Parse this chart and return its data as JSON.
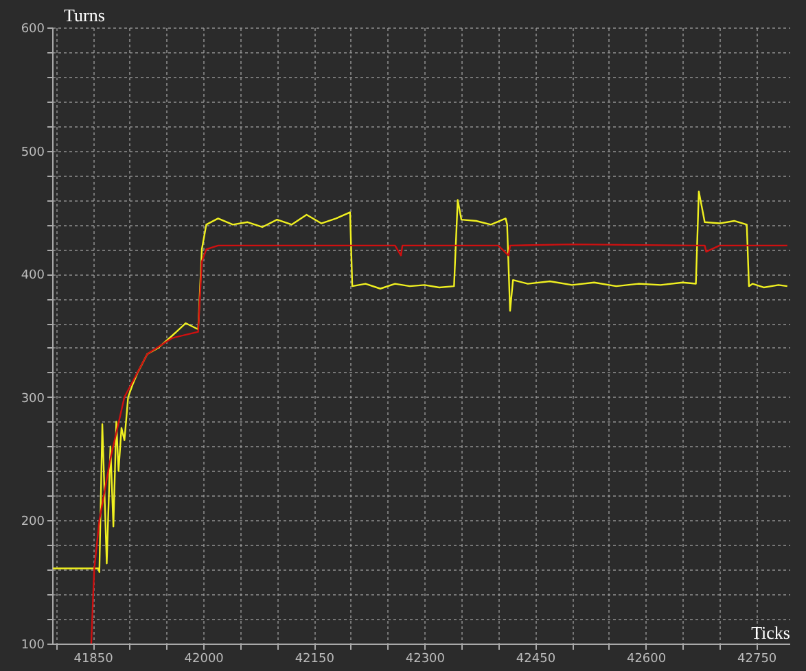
{
  "chart_data": {
    "type": "line",
    "xlabel": "Ticks",
    "ylabel": "Turns",
    "xlim": [
      41795,
      42795
    ],
    "ylim": [
      100,
      600
    ],
    "xticks": [
      {
        "value": 41800,
        "label": null
      },
      41850,
      {
        "value": 41900,
        "label": null
      },
      {
        "value": 41950,
        "label": null
      },
      42000,
      {
        "value": 42050,
        "label": null
      },
      {
        "value": 42100,
        "label": null
      },
      42150,
      {
        "value": 42200,
        "label": null
      },
      {
        "value": 42250,
        "label": null
      },
      42300,
      {
        "value": 42350,
        "label": null
      },
      {
        "value": 42400,
        "label": null
      },
      42450,
      {
        "value": 42500,
        "label": null
      },
      {
        "value": 42550,
        "label": null
      },
      42600,
      {
        "value": 42650,
        "label": null
      },
      {
        "value": 42700,
        "label": null
      },
      42750
    ],
    "yticks": [
      100,
      {
        "value": 120,
        "label": null
      },
      {
        "value": 140,
        "label": null
      },
      {
        "value": 160,
        "label": null
      },
      {
        "value": 180,
        "label": null
      },
      200,
      {
        "value": 220,
        "label": null
      },
      {
        "value": 240,
        "label": null
      },
      {
        "value": 260,
        "label": null
      },
      {
        "value": 280,
        "label": null
      },
      300,
      {
        "value": 320,
        "label": null
      },
      {
        "value": 340,
        "label": null
      },
      {
        "value": 360,
        "label": null
      },
      {
        "value": 380,
        "label": null
      },
      400,
      {
        "value": 420,
        "label": null
      },
      {
        "value": 440,
        "label": null
      },
      {
        "value": 460,
        "label": null
      },
      {
        "value": 480,
        "label": null
      },
      500,
      {
        "value": 520,
        "label": null
      },
      {
        "value": 540,
        "label": null
      },
      {
        "value": 560,
        "label": null
      },
      {
        "value": 580,
        "label": null
      },
      600
    ],
    "grid": true,
    "legend": false,
    "marker": "none",
    "line_style": "solid",
    "series": [
      {
        "color": "#f0f020",
        "x": [
          41796,
          41858,
          41859,
          41863,
          41869,
          41874,
          41878,
          41882,
          41885,
          41889,
          41893,
          41898,
          41904,
          41911,
          41924,
          41939,
          41958,
          41976,
          41993,
          41998,
          42004,
          42020,
          42040,
          42060,
          42080,
          42100,
          42120,
          42140,
          42160,
          42180,
          42199,
          42202,
          42220,
          42240,
          42260,
          42280,
          42300,
          42320,
          42340,
          42345,
          42350,
          42370,
          42390,
          42410,
          42412,
          42416,
          42420,
          42440,
          42470,
          42500,
          42530,
          42560,
          42590,
          42620,
          42650,
          42668,
          42672,
          42680,
          42700,
          42720,
          42737,
          42740,
          42745,
          42760,
          42780,
          42792
        ],
        "values": [
          161,
          161,
          158,
          278,
          165,
          260,
          195,
          280,
          240,
          275,
          265,
          300,
          310,
          320,
          335,
          340,
          350,
          360,
          355,
          420,
          440,
          445,
          440,
          442,
          438,
          444,
          440,
          448,
          441,
          445,
          450,
          390,
          392,
          388,
          392,
          390,
          391,
          389,
          390,
          460,
          444,
          443,
          440,
          445,
          440,
          370,
          395,
          392,
          394,
          391,
          393,
          390,
          392,
          391,
          393,
          392,
          467,
          442,
          441,
          443,
          440,
          390,
          392,
          389,
          391,
          390
        ]
      },
      {
        "color": "#d01010",
        "x": [
          41848,
          41852,
          41859,
          41874,
          41893,
          41924,
          41958,
          41993,
          41998,
          42004,
          42020,
          42100,
          42190,
          42198,
          42200,
          42260,
          42268,
          42270,
          42400,
          42414,
          42416,
          42500,
          42670,
          42680,
          42682,
          42700,
          42792
        ],
        "values": [
          100,
          160,
          200,
          250,
          300,
          335,
          348,
          353,
          410,
          420,
          423,
          423,
          423,
          423,
          423,
          423,
          415,
          423,
          423,
          415,
          423,
          424,
          423,
          423,
          418,
          423,
          423
        ]
      }
    ]
  }
}
